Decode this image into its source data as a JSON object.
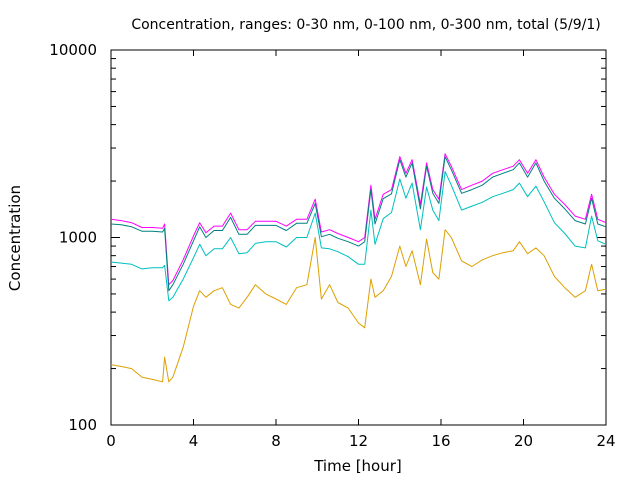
{
  "chart_data": {
    "type": "line",
    "title": "Concentration, ranges: 0-30 nm, 0-100 nm, 0-300 nm, total (5/9/1)",
    "xlabel": "Time [hour]",
    "ylabel": "Concentration",
    "xlim": [
      0,
      24
    ],
    "ylim": [
      100,
      10000
    ],
    "yscale": "log",
    "grid": false,
    "legend": "none",
    "xticks": [
      "0",
      "4",
      "8",
      "12",
      "16",
      "20",
      "24"
    ],
    "yticks": [
      "100",
      "1000",
      "10000"
    ],
    "series": [
      {
        "color": "#ff00ff",
        "x": [
          0,
          0.5,
          1,
          1.5,
          2,
          2.5,
          2.6,
          2.8,
          3,
          3.5,
          4,
          4.3,
          4.6,
          5,
          5.4,
          5.8,
          6.2,
          6.6,
          7,
          7.5,
          8,
          8.5,
          9,
          9.5,
          9.9,
          10.2,
          10.6,
          11,
          11.5,
          12,
          12.3,
          12.6,
          12.8,
          13.2,
          13.6,
          14,
          14.3,
          14.6,
          15,
          15.3,
          15.6,
          15.9,
          16.2,
          16.5,
          17,
          17.5,
          18,
          18.5,
          19,
          19.5,
          19.8,
          20.2,
          20.6,
          21,
          21.5,
          22,
          22.5,
          23,
          23.3,
          23.6,
          24
        ],
        "y": [
          1250,
          1230,
          1200,
          1130,
          1130,
          1120,
          1180,
          560,
          590,
          760,
          1020,
          1200,
          1060,
          1150,
          1150,
          1350,
          1100,
          1100,
          1220,
          1220,
          1220,
          1150,
          1250,
          1250,
          1600,
          1070,
          1100,
          1050,
          1000,
          950,
          1000,
          1900,
          1250,
          1700,
          1800,
          2700,
          2200,
          2600,
          1500,
          2500,
          1800,
          1600,
          2800,
          2400,
          1800,
          1900,
          2000,
          2200,
          2300,
          2400,
          2600,
          2200,
          2600,
          2100,
          1700,
          1500,
          1300,
          1250,
          1700,
          1250,
          1200
        ]
      },
      {
        "color": "#008080",
        "x": [
          0,
          0.5,
          1,
          1.5,
          2,
          2.5,
          2.6,
          2.8,
          3,
          3.5,
          4,
          4.3,
          4.6,
          5,
          5.4,
          5.8,
          6.2,
          6.6,
          7,
          7.5,
          8,
          8.5,
          9,
          9.5,
          9.9,
          10.2,
          10.6,
          11,
          11.5,
          12,
          12.3,
          12.6,
          12.8,
          13.2,
          13.6,
          14,
          14.3,
          14.6,
          15,
          15.3,
          15.6,
          15.9,
          16.2,
          16.5,
          17,
          17.5,
          18,
          18.5,
          19,
          19.5,
          19.8,
          20.2,
          20.6,
          21,
          21.5,
          22,
          22.5,
          23,
          23.3,
          23.6,
          24
        ],
        "y": [
          1180,
          1170,
          1140,
          1080,
          1080,
          1070,
          1120,
          520,
          560,
          720,
          960,
          1140,
          1000,
          1090,
          1090,
          1280,
          1040,
          1040,
          1160,
          1160,
          1160,
          1090,
          1190,
          1190,
          1520,
          1010,
          1040,
          990,
          950,
          900,
          950,
          1800,
          1180,
          1610,
          1710,
          2600,
          2100,
          2500,
          1420,
          2400,
          1720,
          1520,
          2700,
          2300,
          1720,
          1800,
          1900,
          2100,
          2200,
          2300,
          2500,
          2100,
          2500,
          2000,
          1620,
          1420,
          1230,
          1180,
          1620,
          1180,
          1140
        ]
      },
      {
        "color": "#00bfbf",
        "x": [
          0,
          0.5,
          1,
          1.5,
          2,
          2.5,
          2.6,
          2.8,
          3,
          3.5,
          4,
          4.3,
          4.6,
          5,
          5.4,
          5.8,
          6.2,
          6.6,
          7,
          7.5,
          8,
          8.5,
          9,
          9.5,
          9.9,
          10.2,
          10.6,
          11,
          11.5,
          12,
          12.3,
          12.6,
          12.8,
          13.2,
          13.6,
          14,
          14.3,
          14.6,
          15,
          15.3,
          15.6,
          15.9,
          16.2,
          16.5,
          17,
          17.5,
          18,
          18.5,
          19,
          19.5,
          19.8,
          20.2,
          20.6,
          21,
          21.5,
          22,
          22.5,
          23,
          23.3,
          23.6,
          24
        ],
        "y": [
          740,
          730,
          720,
          680,
          690,
          690,
          710,
          460,
          480,
          600,
          780,
          920,
          800,
          870,
          870,
          1000,
          820,
          830,
          930,
          950,
          950,
          890,
          1000,
          1000,
          1350,
          880,
          870,
          840,
          790,
          720,
          720,
          1400,
          920,
          1260,
          1360,
          2050,
          1620,
          1950,
          1100,
          1860,
          1400,
          1230,
          2250,
          1900,
          1400,
          1470,
          1540,
          1650,
          1720,
          1800,
          1950,
          1650,
          1880,
          1550,
          1200,
          1050,
          900,
          880,
          1300,
          960,
          920
        ]
      },
      {
        "color": "#dca000",
        "x": [
          0,
          0.5,
          1,
          1.5,
          2,
          2.5,
          2.6,
          2.8,
          3,
          3.5,
          4,
          4.3,
          4.6,
          5,
          5.4,
          5.8,
          6.2,
          6.6,
          7,
          7.5,
          8,
          8.5,
          9,
          9.5,
          9.9,
          10.2,
          10.6,
          11,
          11.5,
          12,
          12.3,
          12.6,
          12.8,
          13.2,
          13.6,
          14,
          14.3,
          14.6,
          15,
          15.3,
          15.6,
          15.9,
          16.2,
          16.5,
          17,
          17.5,
          18,
          18.5,
          19,
          19.5,
          19.8,
          20.2,
          20.6,
          21,
          21.5,
          22,
          22.5,
          23,
          23.3,
          23.6,
          24
        ],
        "y": [
          210,
          205,
          200,
          180,
          175,
          170,
          230,
          170,
          180,
          260,
          430,
          520,
          480,
          520,
          540,
          440,
          420,
          480,
          560,
          500,
          470,
          440,
          540,
          560,
          1000,
          470,
          560,
          450,
          420,
          350,
          330,
          600,
          480,
          520,
          620,
          900,
          700,
          850,
          560,
          980,
          650,
          600,
          1100,
          1000,
          750,
          700,
          760,
          800,
          830,
          850,
          950,
          820,
          880,
          800,
          620,
          540,
          480,
          520,
          720,
          520,
          530
        ]
      }
    ]
  }
}
